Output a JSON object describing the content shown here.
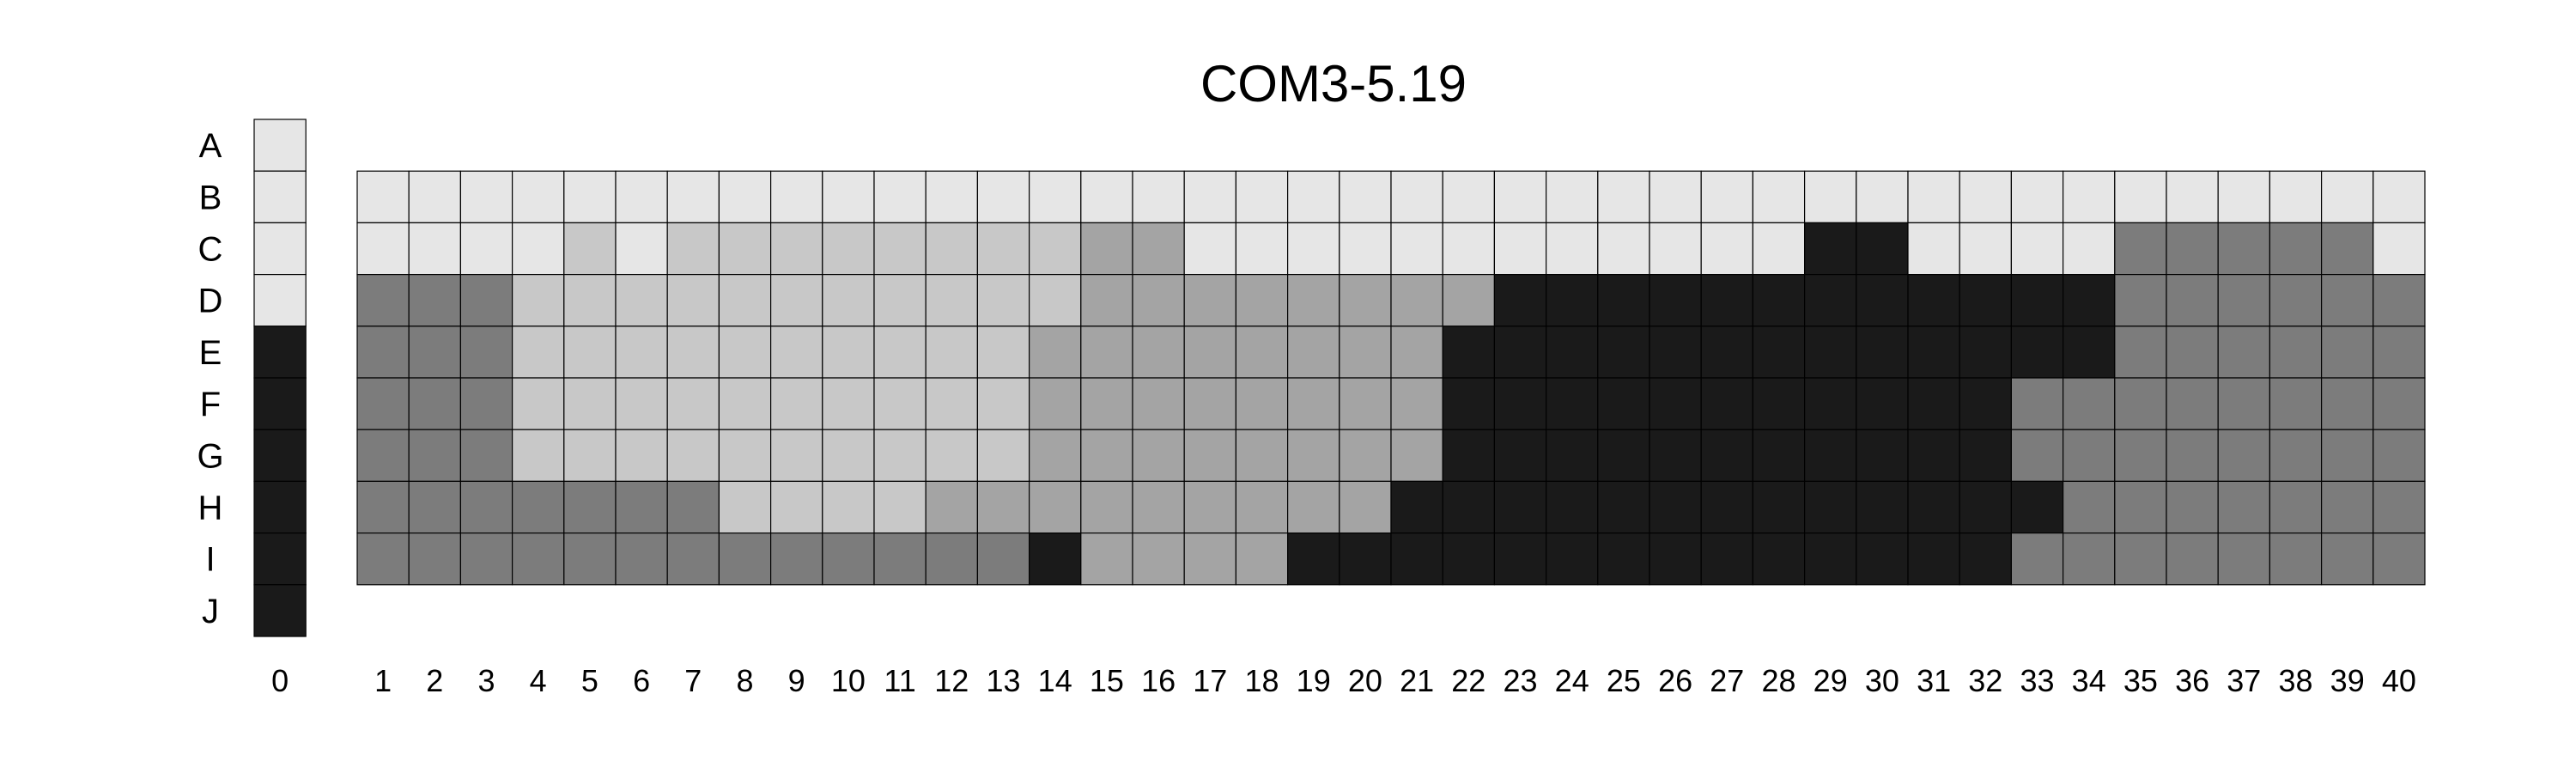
{
  "chart_data": {
    "type": "heatmap",
    "title": "COM3-5.19",
    "rows": [
      "A",
      "B",
      "C",
      "D",
      "E",
      "F",
      "G",
      "H",
      "I",
      "J"
    ],
    "reference_column": {
      "label": "0",
      "levels": [
        0,
        0,
        0,
        0,
        4,
        4,
        4,
        4,
        4,
        4
      ]
    },
    "columns": [
      "1",
      "2",
      "3",
      "4",
      "5",
      "6",
      "7",
      "8",
      "9",
      "10",
      "11",
      "12",
      "13",
      "14",
      "15",
      "16",
      "17",
      "18",
      "19",
      "20",
      "21",
      "22",
      "23",
      "24",
      "25",
      "26",
      "27",
      "28",
      "29",
      "30",
      "31",
      "32",
      "33",
      "34",
      "35",
      "36",
      "37",
      "38",
      "39",
      "40"
    ],
    "grid_rows": [
      "B",
      "C",
      "D",
      "E",
      "F",
      "G",
      "H",
      "I"
    ],
    "grid_levels": [
      [
        0,
        0,
        0,
        0,
        0,
        0,
        0,
        0,
        0,
        0,
        0,
        0,
        0,
        0,
        0,
        0,
        0,
        0,
        0,
        0,
        0,
        0,
        0,
        0,
        0,
        0,
        0,
        0,
        0,
        0,
        0,
        0,
        0,
        0,
        0,
        0,
        0,
        0,
        0,
        0
      ],
      [
        0,
        0,
        0,
        0,
        1,
        0,
        1,
        1,
        1,
        1,
        1,
        1,
        1,
        1,
        2,
        2,
        0,
        0,
        0,
        0,
        0,
        0,
        0,
        0,
        0,
        0,
        0,
        0,
        4,
        4,
        0,
        0,
        0,
        0,
        3,
        3,
        3,
        3,
        3,
        0
      ],
      [
        3,
        3,
        3,
        1,
        1,
        1,
        1,
        1,
        1,
        1,
        1,
        1,
        1,
        1,
        2,
        2,
        2,
        2,
        2,
        2,
        2,
        2,
        4,
        4,
        4,
        4,
        4,
        4,
        4,
        4,
        4,
        4,
        4,
        4,
        3,
        3,
        3,
        3,
        3,
        3
      ],
      [
        3,
        3,
        3,
        1,
        1,
        1,
        1,
        1,
        1,
        1,
        1,
        1,
        1,
        2,
        2,
        2,
        2,
        2,
        2,
        2,
        2,
        4,
        4,
        4,
        4,
        4,
        4,
        4,
        4,
        4,
        4,
        4,
        4,
        4,
        3,
        3,
        3,
        3,
        3,
        3
      ],
      [
        3,
        3,
        3,
        1,
        1,
        1,
        1,
        1,
        1,
        1,
        1,
        1,
        1,
        2,
        2,
        2,
        2,
        2,
        2,
        2,
        2,
        4,
        4,
        4,
        4,
        4,
        4,
        4,
        4,
        4,
        4,
        4,
        3,
        3,
        3,
        3,
        3,
        3,
        3,
        3
      ],
      [
        3,
        3,
        3,
        1,
        1,
        1,
        1,
        1,
        1,
        1,
        1,
        1,
        1,
        2,
        2,
        2,
        2,
        2,
        2,
        2,
        2,
        4,
        4,
        4,
        4,
        4,
        4,
        4,
        4,
        4,
        4,
        4,
        3,
        3,
        3,
        3,
        3,
        3,
        3,
        3
      ],
      [
        3,
        3,
        3,
        3,
        3,
        3,
        3,
        1,
        1,
        1,
        1,
        2,
        2,
        2,
        2,
        2,
        2,
        2,
        2,
        2,
        4,
        4,
        4,
        4,
        4,
        4,
        4,
        4,
        4,
        4,
        4,
        4,
        4,
        3,
        3,
        3,
        3,
        3,
        3,
        3
      ],
      [
        3,
        3,
        3,
        3,
        3,
        3,
        3,
        3,
        3,
        3,
        3,
        3,
        3,
        4,
        2,
        2,
        2,
        2,
        4,
        4,
        4,
        4,
        4,
        4,
        4,
        4,
        4,
        4,
        4,
        4,
        4,
        4,
        3,
        3,
        3,
        3,
        3,
        3,
        3,
        3
      ]
    ],
    "level_colors": [
      "#e6e6e6",
      "#c8c8c8",
      "#a4a4a4",
      "#7c7c7c",
      "#1a1a1a"
    ],
    "grid": true,
    "legend": "none"
  }
}
